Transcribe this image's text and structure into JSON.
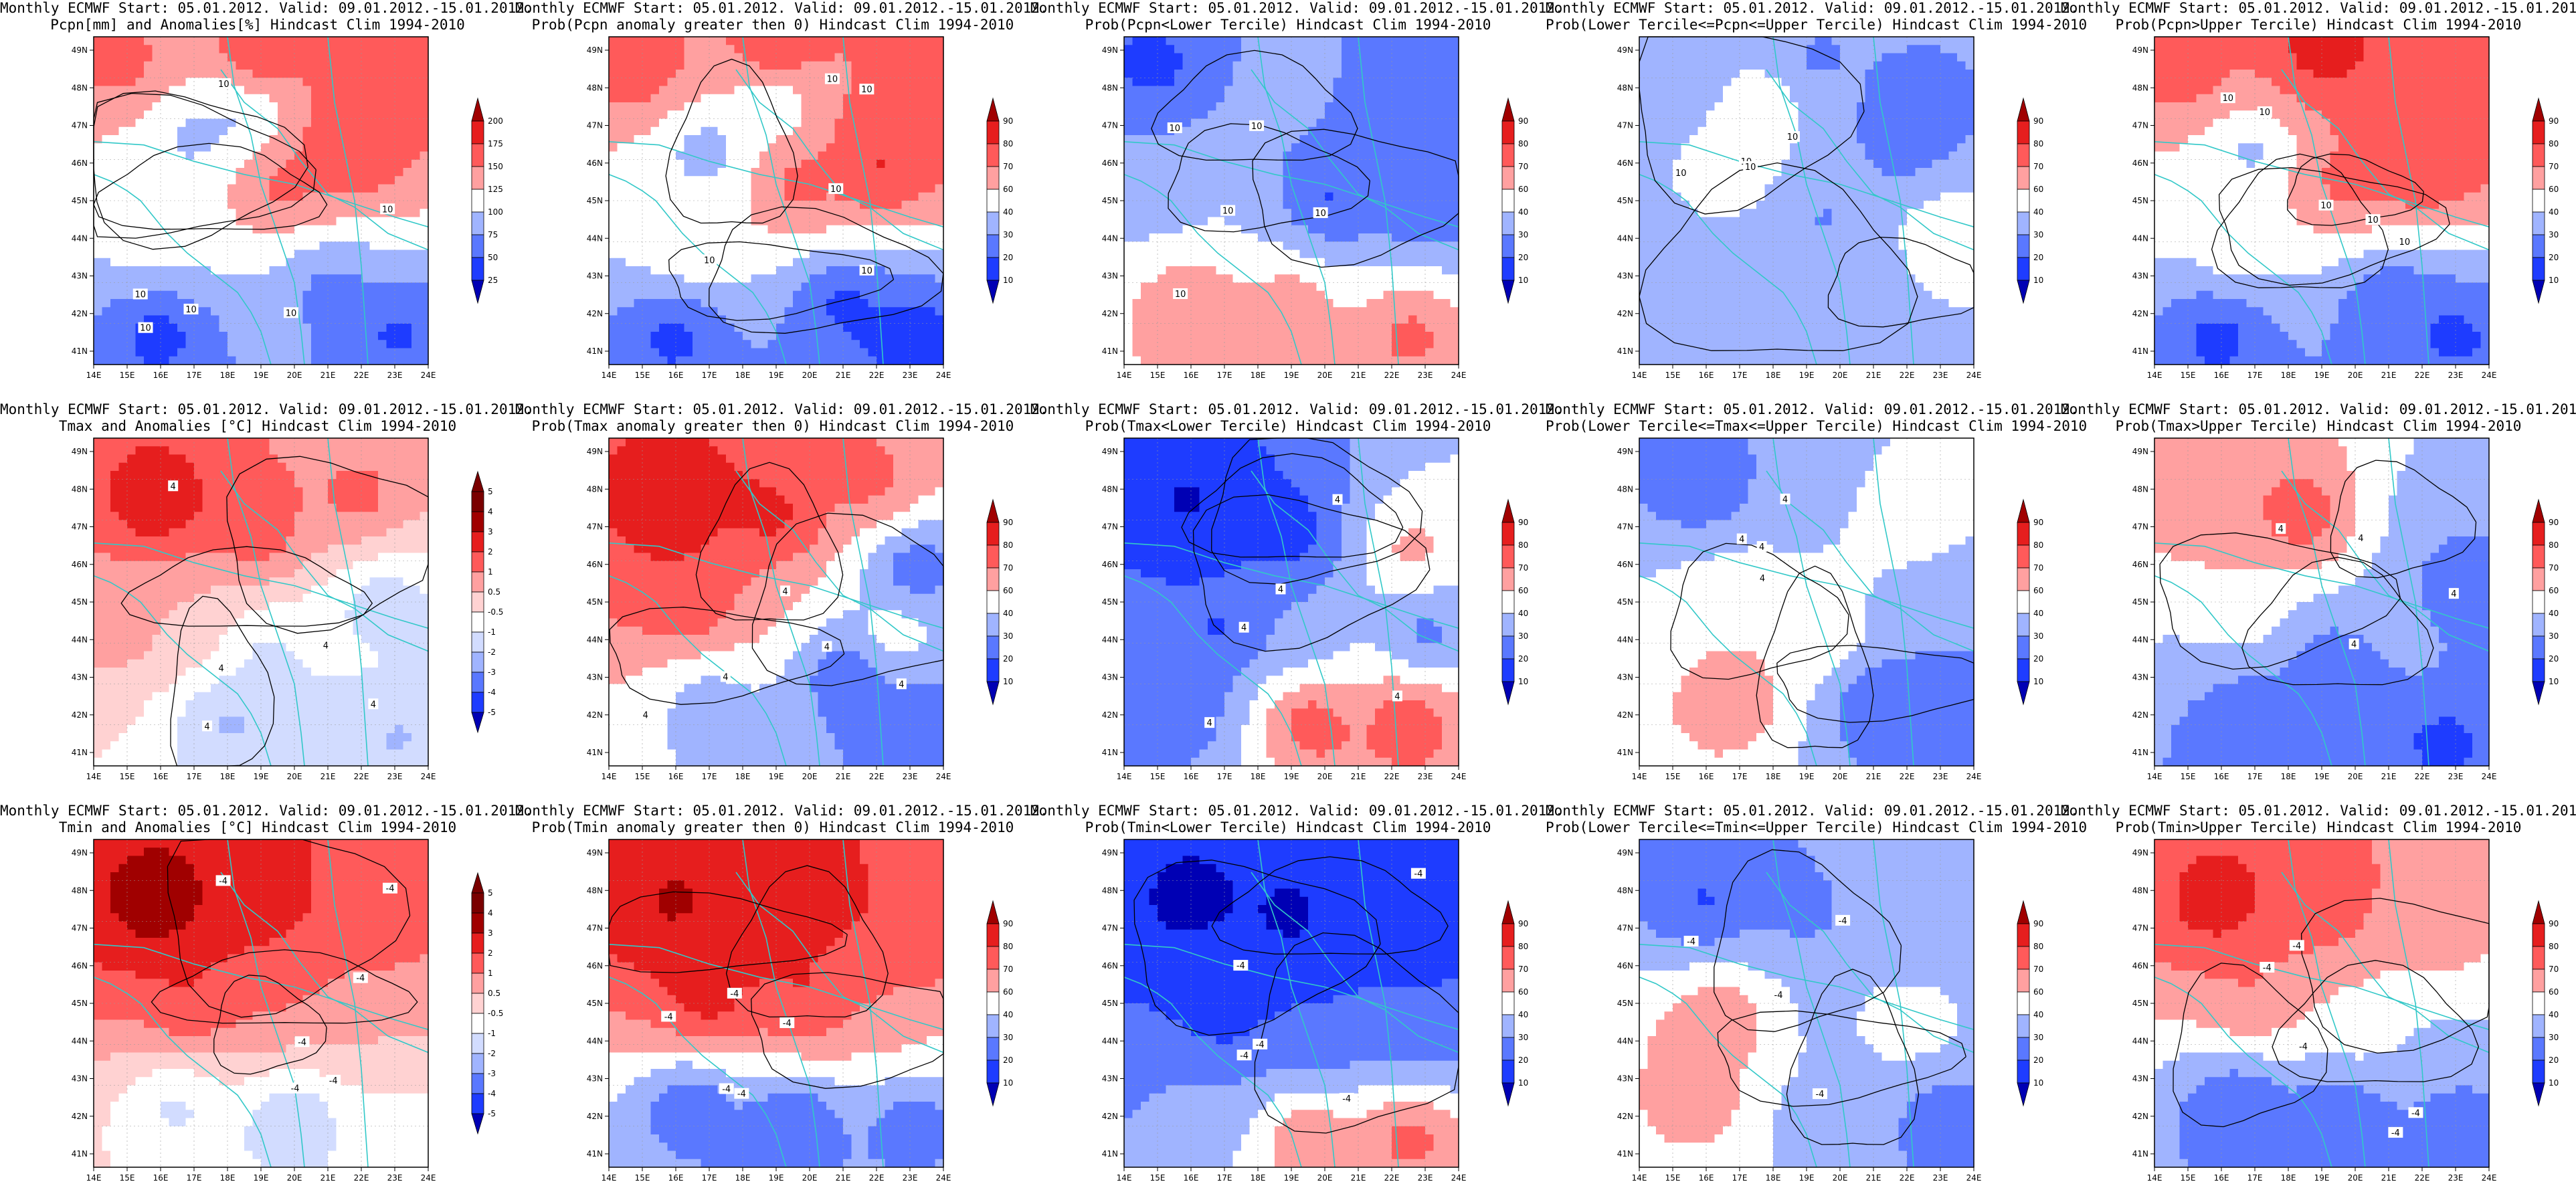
{
  "common": {
    "start_line": "Monthly ECMWF Start: 05.01.2012. Valid: 09.01.2012.-15.01.2012.",
    "lon_ticks": [
      "14E",
      "15E",
      "16E",
      "17E",
      "18E",
      "19E",
      "20E",
      "21E",
      "22E",
      "23E",
      "24E"
    ],
    "lat_ticks": [
      "49N",
      "48N",
      "47N",
      "46N",
      "45N",
      "44N",
      "43N",
      "42N",
      "41N"
    ]
  },
  "colors": {
    "dark_blue": "#0000b4",
    "blue": "#1e3cff",
    "mid_blue": "#5a78ff",
    "light_blue": "#a0b4ff",
    "pale_blue": "#d2dcff",
    "white": "#ffffff",
    "pale_red": "#ffd2d2",
    "light_red": "#ffa0a0",
    "mid_red": "#ff5a5a",
    "red": "#e61e1e",
    "dark_red": "#a00000",
    "coast": "#32c8c8",
    "contour": "#000000"
  },
  "legends": {
    "pcpn": [
      "25",
      "50",
      "75",
      "100",
      "125",
      "150",
      "175",
      "200"
    ],
    "prob": [
      "10",
      "20",
      "30",
      "40",
      "60",
      "70",
      "80",
      "90"
    ],
    "temp": [
      "-5",
      "-4",
      "-3",
      "-2",
      "-1",
      "-0.5",
      "0.5",
      "1",
      "2",
      "3",
      "4",
      "5"
    ]
  },
  "rows": [
    {
      "panels": [
        {
          "title": "Pcpn[mm] and Anomalies[%] Hindcast Clim 1994-2010",
          "legend": "pcpn",
          "contour_labels": [
            "10",
            "10",
            "10",
            "10",
            "10",
            "10"
          ]
        },
        {
          "title": "Prob(Pcpn anomaly greater then 0) Hindcast Clim 1994-2010",
          "legend": "prob",
          "contour_labels": [
            "10",
            "10",
            "10",
            "10",
            "10"
          ]
        },
        {
          "title": "Prob(Pcpn<Lower Tercile) Hindcast Clim 1994-2010",
          "legend": "prob",
          "contour_labels": [
            "10",
            "10",
            "10",
            "10",
            "10"
          ]
        },
        {
          "title": "Prob(Lower Tercile<=Pcpn<=Upper Tercile) Hindcast Clim 1994-2010",
          "legend": "prob",
          "contour_labels": [
            "10",
            "10",
            "10",
            "10"
          ]
        },
        {
          "title": "Prob(Pcpn>Upper Tercile) Hindcast Clim 1994-2010",
          "legend": "prob",
          "contour_labels": [
            "10",
            "10",
            "10",
            "10",
            "10"
          ]
        }
      ]
    },
    {
      "panels": [
        {
          "title": "Tmax and Anomalies [°C] Hindcast Clim 1994-2010",
          "legend": "temp",
          "contour_labels": [
            "4",
            "4",
            "4",
            "4",
            "4"
          ]
        },
        {
          "title": "Prob(Tmax anomaly greater then 0) Hindcast Clim 1994-2010",
          "legend": "prob",
          "contour_labels": [
            "4",
            "4",
            "4",
            "4",
            "4"
          ]
        },
        {
          "title": "Prob(Tmax<Lower Tercile) Hindcast Clim 1994-2010",
          "legend": "prob",
          "contour_labels": [
            "4",
            "4",
            "4",
            "4",
            "4"
          ]
        },
        {
          "title": "Prob(Lower Tercile<=Tmax<=Upper Tercile) Hindcast Clim 1994-2010",
          "legend": "prob",
          "contour_labels": [
            "4",
            "4",
            "4",
            "4"
          ]
        },
        {
          "title": "Prob(Tmax>Upper Tercile) Hindcast Clim 1994-2010",
          "legend": "prob",
          "contour_labels": [
            "4",
            "4",
            "4",
            "4"
          ]
        }
      ]
    },
    {
      "panels": [
        {
          "title": "Tmin and Anomalies [°C] Hindcast Clim 1994-2010",
          "legend": "temp",
          "contour_labels": [
            "-4",
            "-4",
            "-4",
            "-4",
            "-4",
            "-4"
          ]
        },
        {
          "title": "Prob(Tmin anomaly greater then 0) Hindcast Clim 1994-2010",
          "legend": "prob",
          "contour_labels": [
            "-4",
            "-4",
            "-4",
            "-4",
            "-4"
          ]
        },
        {
          "title": "Prob(Tmin<Lower Tercile) Hindcast Clim 1994-2010",
          "legend": "prob",
          "contour_labels": [
            "-4",
            "-4",
            "-4",
            "-4",
            "-4"
          ]
        },
        {
          "title": "Prob(Lower Tercile<=Tmin<=Upper Tercile) Hindcast Clim 1994-2010",
          "legend": "prob",
          "contour_labels": [
            "-4",
            "-4",
            "-4",
            "-4"
          ]
        },
        {
          "title": "Prob(Tmin>Upper Tercile) Hindcast Clim 1994-2010",
          "legend": "prob",
          "contour_labels": [
            "-4",
            "-4",
            "-4",
            "-4",
            "-4"
          ]
        }
      ]
    }
  ]
}
